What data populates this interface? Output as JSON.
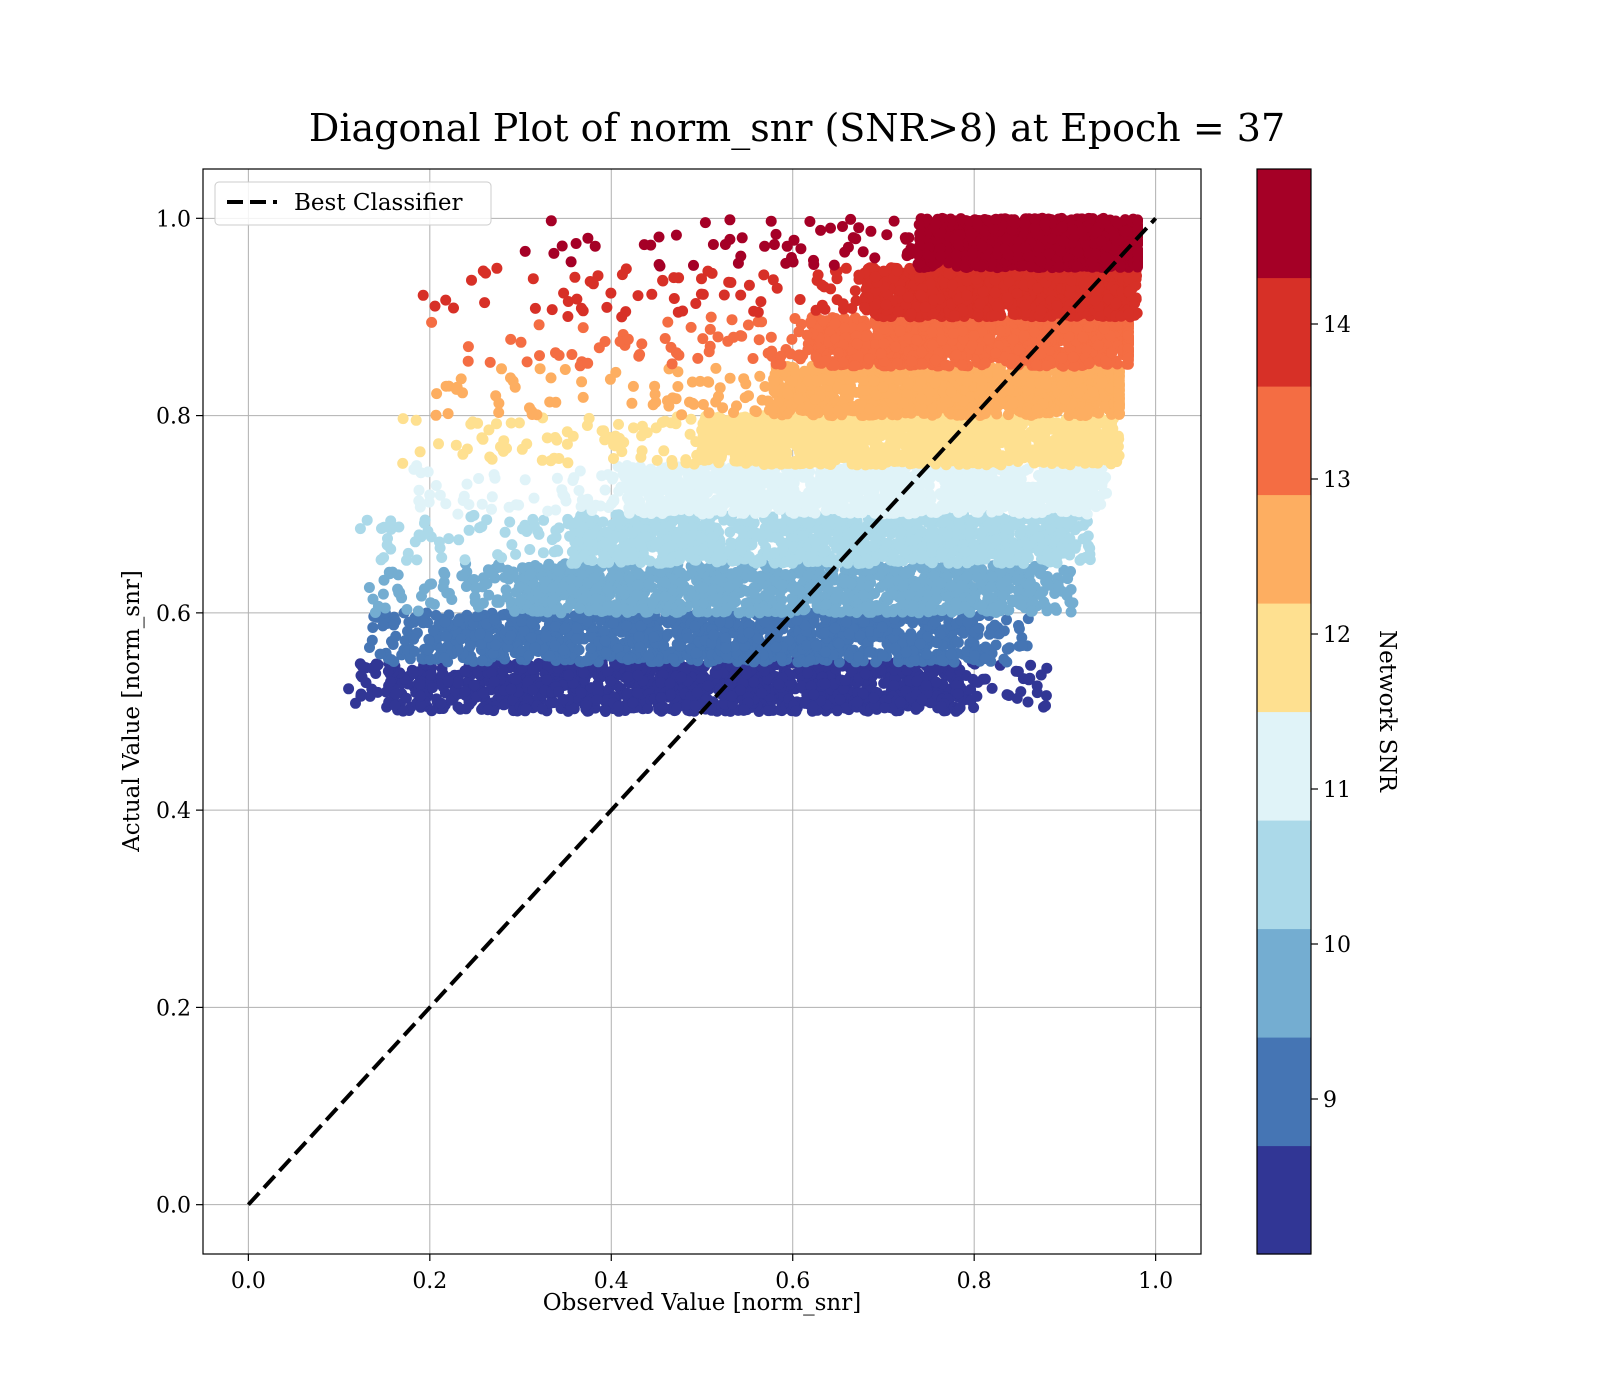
{
  "chart_data": {
    "type": "scatter",
    "title": "Diagonal Plot of norm_snr (SNR>8) at Epoch = 37",
    "xlabel": "Observed Value [norm_snr]",
    "ylabel": "Actual Value [norm_snr]",
    "xlim": [
      -0.05,
      1.05
    ],
    "ylim": [
      -0.05,
      1.05
    ],
    "xticks": [
      "0.0",
      "0.2",
      "0.4",
      "0.6",
      "0.8",
      "1.0"
    ],
    "yticks": [
      "0.0",
      "0.2",
      "0.4",
      "0.6",
      "0.8",
      "1.0"
    ],
    "grid": true,
    "legend": {
      "placement": "upper-left",
      "entries": [
        "Best Classifier"
      ]
    },
    "reference_line": {
      "name": "Best Classifier",
      "style": "dashed",
      "color": "#000000",
      "x": [
        0.0,
        1.0
      ],
      "y": [
        0.0,
        1.0
      ]
    },
    "colorbar": {
      "label": "Network SNR",
      "range": [
        8.0,
        15.0
      ],
      "ticks": [
        "9",
        "10",
        "11",
        "12",
        "13",
        "14"
      ],
      "tick_values": [
        9,
        10,
        11,
        12,
        13,
        14
      ],
      "bins": [
        {
          "lo": 8.0,
          "hi": 8.7,
          "color": "#313695"
        },
        {
          "lo": 8.7,
          "hi": 9.4,
          "color": "#4575b4"
        },
        {
          "lo": 9.4,
          "hi": 10.1,
          "color": "#74add1"
        },
        {
          "lo": 10.1,
          "hi": 10.8,
          "color": "#abd9e9"
        },
        {
          "lo": 10.8,
          "hi": 11.5,
          "color": "#e0f3f8"
        },
        {
          "lo": 11.5,
          "hi": 12.2,
          "color": "#fee090"
        },
        {
          "lo": 12.2,
          "hi": 12.9,
          "color": "#fdae61"
        },
        {
          "lo": 12.9,
          "hi": 13.6,
          "color": "#f46d43"
        },
        {
          "lo": 13.6,
          "hi": 14.3,
          "color": "#d73027"
        },
        {
          "lo": 14.3,
          "hi": 15.0,
          "color": "#a50026"
        }
      ]
    },
    "series": [
      {
        "snr": 8.35,
        "y_range": [
          0.5,
          0.55
        ],
        "dense_x": [
          0.19,
          0.78
        ],
        "spread_x": [
          0.11,
          0.89
        ]
      },
      {
        "snr": 9.05,
        "y_range": [
          0.55,
          0.6
        ],
        "dense_x": [
          0.22,
          0.8
        ],
        "spread_x": [
          0.13,
          0.86
        ]
      },
      {
        "snr": 9.75,
        "y_range": [
          0.6,
          0.65
        ],
        "dense_x": [
          0.3,
          0.86
        ],
        "spread_x": [
          0.13,
          0.91
        ]
      },
      {
        "snr": 10.45,
        "y_range": [
          0.65,
          0.7
        ],
        "dense_x": [
          0.36,
          0.89
        ],
        "spread_x": [
          0.12,
          0.93
        ]
      },
      {
        "snr": 11.15,
        "y_range": [
          0.7,
          0.75
        ],
        "dense_x": [
          0.42,
          0.92
        ],
        "spread_x": [
          0.18,
          0.95
        ]
      },
      {
        "snr": 11.85,
        "y_range": [
          0.75,
          0.8
        ],
        "dense_x": [
          0.5,
          0.95
        ],
        "spread_x": [
          0.17,
          0.96
        ]
      },
      {
        "snr": 12.55,
        "y_range": [
          0.8,
          0.85
        ],
        "dense_x": [
          0.58,
          0.96
        ],
        "spread_x": [
          0.2,
          0.96
        ]
      },
      {
        "snr": 13.25,
        "y_range": [
          0.85,
          0.9
        ],
        "dense_x": [
          0.62,
          0.97
        ],
        "spread_x": [
          0.2,
          0.97
        ]
      },
      {
        "snr": 13.95,
        "y_range": [
          0.9,
          0.95
        ],
        "dense_x": [
          0.68,
          0.97
        ],
        "spread_x": [
          0.19,
          0.98
        ]
      },
      {
        "snr": 14.65,
        "y_range": [
          0.95,
          1.0
        ],
        "dense_x": [
          0.74,
          0.98
        ],
        "spread_x": [
          0.3,
          0.98
        ]
      }
    ]
  }
}
